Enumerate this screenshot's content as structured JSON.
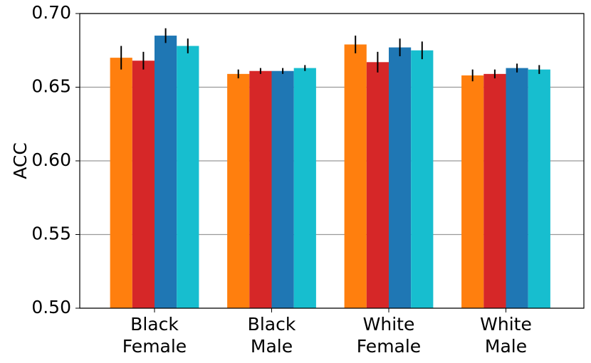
{
  "chart_data": {
    "type": "bar",
    "y_label": "ACC",
    "categories": [
      "Black Female",
      "Black Male",
      "White Female",
      "White Male"
    ],
    "series": [
      {
        "color": "#ff7f0e",
        "values": [
          0.67,
          0.659,
          0.679,
          0.658
        ],
        "errors": [
          0.008,
          0.003,
          0.006,
          0.004
        ]
      },
      {
        "color": "#d62728",
        "values": [
          0.668,
          0.661,
          0.667,
          0.659
        ],
        "errors": [
          0.006,
          0.002,
          0.007,
          0.003
        ]
      },
      {
        "color": "#1f77b4",
        "values": [
          0.685,
          0.661,
          0.677,
          0.663
        ],
        "errors": [
          0.005,
          0.002,
          0.006,
          0.003
        ]
      },
      {
        "color": "#17becf",
        "values": [
          0.678,
          0.663,
          0.675,
          0.662
        ],
        "errors": [
          0.005,
          0.002,
          0.006,
          0.003
        ]
      }
    ],
    "ylim": [
      0.5,
      0.7
    ],
    "yticks": [
      {
        "value": 0.5,
        "label": "0.50"
      },
      0.55,
      {
        "value": 0.6,
        "label": "0.60"
      },
      0.65,
      {
        "value": 0.7,
        "label": "0.70"
      }
    ],
    "grid": true
  }
}
